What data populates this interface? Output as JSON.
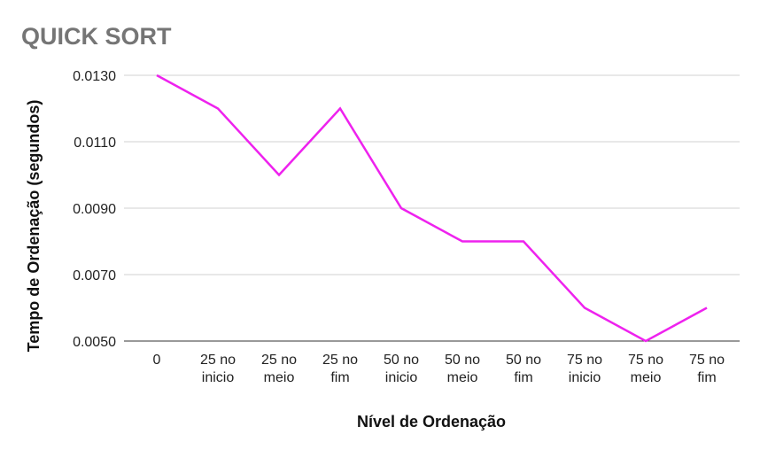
{
  "chart_data": {
    "type": "line",
    "title": "QUICK SORT",
    "xlabel": "Nível de Ordenação",
    "ylabel": "Tempo de Ordenação (segundos)",
    "categories": [
      [
        "0"
      ],
      [
        "25 no",
        "inicio"
      ],
      [
        "25 no",
        "meio"
      ],
      [
        "25 no",
        "fim"
      ],
      [
        "50 no",
        "inicio"
      ],
      [
        "50 no",
        "meio"
      ],
      [
        "50 no",
        "fim"
      ],
      [
        "75 no",
        "inicio"
      ],
      [
        "75 no",
        "meio"
      ],
      [
        "75 no",
        "fim"
      ]
    ],
    "series": [
      {
        "color": "#ee22ee",
        "values": [
          0.013,
          0.012,
          0.01,
          0.012,
          0.009,
          0.008,
          0.008,
          0.006,
          0.005,
          0.006
        ]
      }
    ],
    "ylim": [
      0.005,
      0.013
    ],
    "yticks": [
      "0.0050",
      "0.0070",
      "0.0090",
      "0.0110",
      "0.0130"
    ],
    "ytick_values": [
      0.005,
      0.007,
      0.009,
      0.011,
      0.013
    ],
    "grid": true,
    "legend": "none"
  }
}
